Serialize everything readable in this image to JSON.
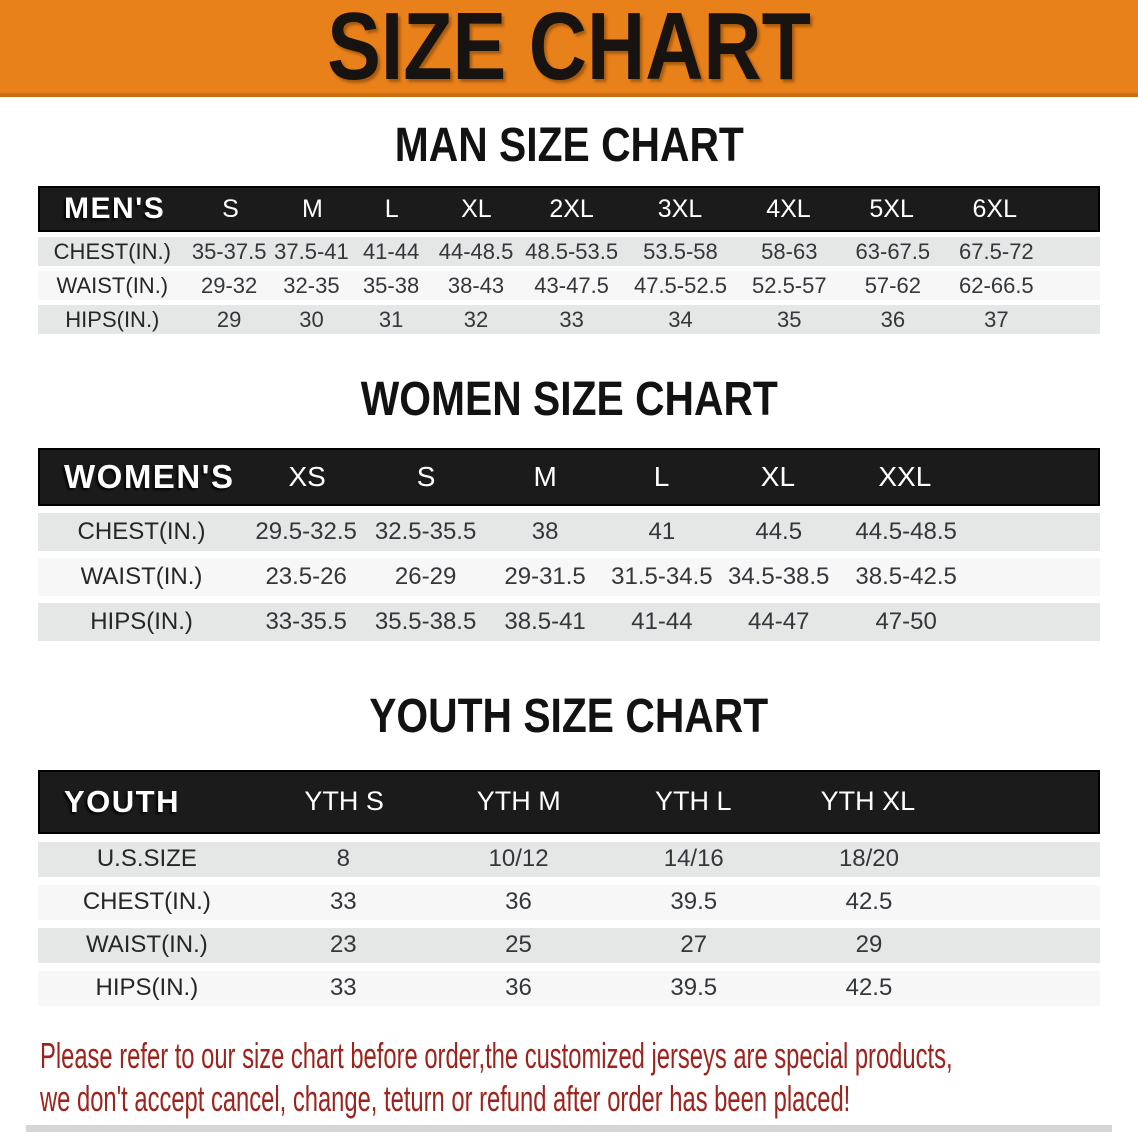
{
  "banner": {
    "title": "SIZE CHART"
  },
  "colors": {
    "banner_orange": "#E8811A",
    "banner_edge": "#C86F10",
    "title_black": "#161310",
    "heading_black": "#121212",
    "header_black": "#1B1B1B",
    "row_gray": "#E5E6E6",
    "row_light": "#F7F7F7",
    "disclaimer_red": "#9C241D"
  },
  "sections": [
    {
      "id": "men",
      "heading": "MAN SIZE CHART",
      "group_label": "MEN'S",
      "columns": [
        "S",
        "M",
        "L",
        "XL",
        "2XL",
        "3XL",
        "4XL",
        "5XL",
        "6XL"
      ],
      "rows": [
        {
          "label": "CHEST(IN.)",
          "values": [
            "35-37.5",
            "37.5-41",
            "41-44",
            "44-48.5",
            "48.5-53.5",
            "53.5-58",
            "58-63",
            "63-67.5",
            "67.5-72"
          ]
        },
        {
          "label": "WAIST(IN.)",
          "values": [
            "29-32",
            "32-35",
            "35-38",
            "38-43",
            "43-47.5",
            "47.5-52.5",
            "52.5-57",
            "57-62",
            "62-66.5"
          ]
        },
        {
          "label": "HIPS(IN.)",
          "values": [
            "29",
            "30",
            "31",
            "32",
            "33",
            "34",
            "35",
            "36",
            "37"
          ]
        }
      ]
    },
    {
      "id": "women",
      "heading": "WOMEN SIZE CHART",
      "group_label": "WOMEN'S",
      "columns": [
        "XS",
        "S",
        "M",
        "L",
        "XL",
        "XXL"
      ],
      "rows": [
        {
          "label": "CHEST(IN.)",
          "values": [
            "29.5-32.5",
            "32.5-35.5",
            "38",
            "41",
            "44.5",
            "44.5-48.5"
          ]
        },
        {
          "label": "WAIST(IN.)",
          "values": [
            "23.5-26",
            "26-29",
            "29-31.5",
            "31.5-34.5",
            "34.5-38.5",
            "38.5-42.5"
          ]
        },
        {
          "label": "HIPS(IN.)",
          "values": [
            "33-35.5",
            "35.5-38.5",
            "38.5-41",
            "41-44",
            "44-47",
            "47-50"
          ]
        }
      ]
    },
    {
      "id": "youth",
      "heading": "YOUTH SIZE CHART",
      "group_label": "YOUTH",
      "columns": [
        "YTH S",
        "YTH M",
        "YTH L",
        "YTH XL"
      ],
      "rows": [
        {
          "label": "U.S.SIZE",
          "values": [
            "8",
            "10/12",
            "14/16",
            "18/20"
          ]
        },
        {
          "label": "CHEST(IN.)",
          "values": [
            "33",
            "36",
            "39.5",
            "42.5"
          ]
        },
        {
          "label": "WAIST(IN.)",
          "values": [
            "23",
            "25",
            "27",
            "29"
          ]
        },
        {
          "label": "HIPS(IN.)",
          "values": [
            "33",
            "36",
            "39.5",
            "42.5"
          ]
        }
      ]
    }
  ],
  "disclaimer": {
    "lines": [
      "Please refer to our size chart before order,the customized jerseys are special products,",
      "we don't accept cancel, change, teturn or refund after order has been placed!"
    ]
  }
}
